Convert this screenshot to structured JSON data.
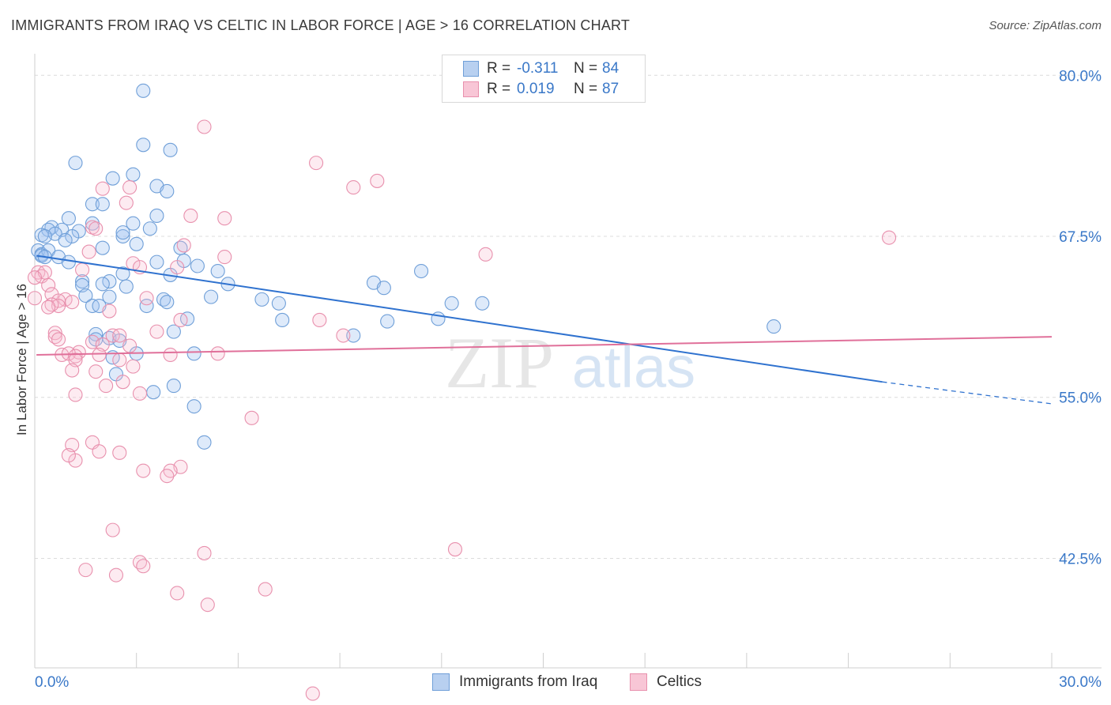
{
  "title": "IMMIGRANTS FROM IRAQ VS CELTIC IN LABOR FORCE | AGE > 16 CORRELATION CHART",
  "source": "Source: ZipAtlas.com",
  "watermark": {
    "zip": "ZIP",
    "atlas": "atlas"
  },
  "legend": {
    "series": [
      {
        "swatch_fill": "#b8d0f0",
        "swatch_stroke": "#6f9fd8",
        "r_label": "R =",
        "r_value": "-0.311",
        "n_label": "N =",
        "n_value": "84"
      },
      {
        "swatch_fill": "#f8c6d6",
        "swatch_stroke": "#e890ad",
        "r_label": "R =",
        "r_value": "0.019",
        "n_label": "N =",
        "n_value": "87"
      }
    ]
  },
  "bottom_legend": [
    {
      "label": "Immigrants from Iraq",
      "swatch_fill": "#b8d0f0",
      "swatch_stroke": "#6f9fd8"
    },
    {
      "label": "Celtics",
      "swatch_fill": "#f8c6d6",
      "swatch_stroke": "#e890ad"
    }
  ],
  "chart_data": {
    "type": "scatter",
    "title": "IMMIGRANTS FROM IRAQ VS CELTIC IN LABOR FORCE | AGE > 16 CORRELATION CHART",
    "xlabel": "",
    "ylabel": "In Labor Force | Age > 16",
    "xlim": [
      0,
      30
    ],
    "ylim": [
      34,
      81
    ],
    "x_tick_labels": [
      "0.0%",
      "30.0%"
    ],
    "y_ticks": [
      42.5,
      55.0,
      67.5,
      80.0
    ],
    "y_tick_labels": [
      "42.5%",
      "55.0%",
      "67.5%",
      "80.0%"
    ],
    "grid": "horizontal dashed",
    "series": [
      {
        "name": "Immigrants from Iraq",
        "color": "#6f9fd8",
        "fill": "rgba(160,195,240,0.35)",
        "line_color": "#2f72cf",
        "trend": {
          "x0": 0.05,
          "y0": 66.0,
          "x1": 25.0,
          "y1": 56.2,
          "dash_to_x": 30.0,
          "dash_to_y": 54.5
        },
        "points": [
          [
            3.2,
            78.8
          ],
          [
            3.2,
            74.6
          ],
          [
            4.0,
            74.2
          ],
          [
            1.2,
            73.2
          ],
          [
            2.3,
            72.0
          ],
          [
            2.9,
            72.3
          ],
          [
            3.6,
            71.4
          ],
          [
            3.9,
            71.0
          ],
          [
            1.7,
            70.0
          ],
          [
            2.0,
            70.0
          ],
          [
            3.6,
            69.1
          ],
          [
            1.0,
            68.9
          ],
          [
            1.7,
            68.5
          ],
          [
            2.9,
            68.5
          ],
          [
            3.4,
            68.1
          ],
          [
            0.5,
            68.2
          ],
          [
            0.4,
            68.0
          ],
          [
            0.8,
            68.0
          ],
          [
            1.3,
            67.9
          ],
          [
            0.2,
            67.6
          ],
          [
            0.6,
            67.7
          ],
          [
            0.3,
            67.5
          ],
          [
            1.1,
            67.5
          ],
          [
            0.9,
            67.2
          ],
          [
            2.6,
            67.5
          ],
          [
            2.6,
            67.8
          ],
          [
            3.0,
            66.9
          ],
          [
            0.1,
            66.4
          ],
          [
            0.2,
            66.1
          ],
          [
            0.4,
            66.4
          ],
          [
            0.2,
            66.0
          ],
          [
            0.3,
            65.9
          ],
          [
            0.7,
            65.9
          ],
          [
            2.0,
            66.6
          ],
          [
            4.3,
            66.6
          ],
          [
            4.4,
            65.6
          ],
          [
            3.6,
            65.5
          ],
          [
            1.0,
            65.5
          ],
          [
            4.8,
            65.2
          ],
          [
            5.4,
            64.8
          ],
          [
            2.6,
            64.6
          ],
          [
            4.0,
            64.5
          ],
          [
            1.4,
            64.0
          ],
          [
            2.2,
            64.0
          ],
          [
            1.4,
            63.7
          ],
          [
            2.0,
            63.8
          ],
          [
            2.7,
            63.6
          ],
          [
            5.7,
            63.8
          ],
          [
            10.0,
            63.9
          ],
          [
            10.3,
            63.5
          ],
          [
            11.4,
            64.8
          ],
          [
            1.5,
            62.9
          ],
          [
            2.2,
            62.8
          ],
          [
            3.8,
            62.6
          ],
          [
            3.9,
            62.4
          ],
          [
            5.2,
            62.8
          ],
          [
            6.7,
            62.6
          ],
          [
            7.2,
            62.3
          ],
          [
            12.3,
            62.3
          ],
          [
            13.2,
            62.3
          ],
          [
            1.7,
            62.1
          ],
          [
            1.9,
            62.1
          ],
          [
            3.3,
            62.1
          ],
          [
            4.5,
            61.1
          ],
          [
            7.3,
            61.0
          ],
          [
            10.4,
            60.9
          ],
          [
            11.9,
            61.1
          ],
          [
            21.8,
            60.5
          ],
          [
            1.8,
            59.9
          ],
          [
            2.2,
            59.6
          ],
          [
            1.8,
            59.5
          ],
          [
            2.5,
            59.4
          ],
          [
            4.1,
            60.1
          ],
          [
            9.4,
            59.8
          ],
          [
            4.7,
            58.4
          ],
          [
            2.3,
            58.1
          ],
          [
            3.0,
            58.4
          ],
          [
            2.4,
            56.8
          ],
          [
            4.1,
            55.9
          ],
          [
            3.5,
            55.4
          ],
          [
            4.7,
            54.3
          ],
          [
            5.0,
            51.5
          ]
        ]
      },
      {
        "name": "Celtics",
        "color": "#e890ad",
        "fill": "rgba(248,190,210,0.30)",
        "line_color": "#e0709a",
        "trend": {
          "x0": 0.05,
          "y0": 58.3,
          "x1": 30.0,
          "y1": 59.7
        },
        "points": [
          [
            5.0,
            76.0
          ],
          [
            8.3,
            73.2
          ],
          [
            9.4,
            71.3
          ],
          [
            10.1,
            71.8
          ],
          [
            2.0,
            71.2
          ],
          [
            2.8,
            71.3
          ],
          [
            2.7,
            70.1
          ],
          [
            4.6,
            69.1
          ],
          [
            5.6,
            68.9
          ],
          [
            1.7,
            68.2
          ],
          [
            1.8,
            68.1
          ],
          [
            4.4,
            66.8
          ],
          [
            1.6,
            66.3
          ],
          [
            13.3,
            66.1
          ],
          [
            25.2,
            67.4
          ],
          [
            2.9,
            65.4
          ],
          [
            3.1,
            65.1
          ],
          [
            4.2,
            65.1
          ],
          [
            5.6,
            65.9
          ],
          [
            0.1,
            64.7
          ],
          [
            0.2,
            64.4
          ],
          [
            0.3,
            64.7
          ],
          [
            0.0,
            64.3
          ],
          [
            1.4,
            64.9
          ],
          [
            0.4,
            63.7
          ],
          [
            0.5,
            63.0
          ],
          [
            0.9,
            62.6
          ],
          [
            1.1,
            62.4
          ],
          [
            0.7,
            62.5
          ],
          [
            0.7,
            62.1
          ],
          [
            0.5,
            62.2
          ],
          [
            0.4,
            62.0
          ],
          [
            3.3,
            62.7
          ],
          [
            2.2,
            61.7
          ],
          [
            4.3,
            61.0
          ],
          [
            8.4,
            61.0
          ],
          [
            0.0,
            62.7
          ],
          [
            0.6,
            60.0
          ],
          [
            0.6,
            59.7
          ],
          [
            0.7,
            59.5
          ],
          [
            2.3,
            59.8
          ],
          [
            2.5,
            59.8
          ],
          [
            3.6,
            60.1
          ],
          [
            9.1,
            59.8
          ],
          [
            1.7,
            59.3
          ],
          [
            2.0,
            59.1
          ],
          [
            1.3,
            58.5
          ],
          [
            1.9,
            58.3
          ],
          [
            2.8,
            59.0
          ],
          [
            0.8,
            58.3
          ],
          [
            1.0,
            58.4
          ],
          [
            1.2,
            58.2
          ],
          [
            4.0,
            58.3
          ],
          [
            5.4,
            58.4
          ],
          [
            1.2,
            57.9
          ],
          [
            2.5,
            57.9
          ],
          [
            2.9,
            57.4
          ],
          [
            1.1,
            57.1
          ],
          [
            1.8,
            57.0
          ],
          [
            2.6,
            56.2
          ],
          [
            2.1,
            55.9
          ],
          [
            3.1,
            55.3
          ],
          [
            1.2,
            55.2
          ],
          [
            6.4,
            53.4
          ],
          [
            1.7,
            51.5
          ],
          [
            1.1,
            51.3
          ],
          [
            1.9,
            50.8
          ],
          [
            2.5,
            50.7
          ],
          [
            1.2,
            50.1
          ],
          [
            1.0,
            50.5
          ],
          [
            4.3,
            49.6
          ],
          [
            3.2,
            49.3
          ],
          [
            4.0,
            49.3
          ],
          [
            3.9,
            48.9
          ],
          [
            2.3,
            44.7
          ],
          [
            12.4,
            43.2
          ],
          [
            5.0,
            42.9
          ],
          [
            3.1,
            42.2
          ],
          [
            3.2,
            41.9
          ],
          [
            1.5,
            41.6
          ],
          [
            2.4,
            41.2
          ],
          [
            4.2,
            39.8
          ],
          [
            6.8,
            40.1
          ],
          [
            5.1,
            38.9
          ],
          [
            8.2,
            32.0
          ]
        ]
      }
    ]
  }
}
